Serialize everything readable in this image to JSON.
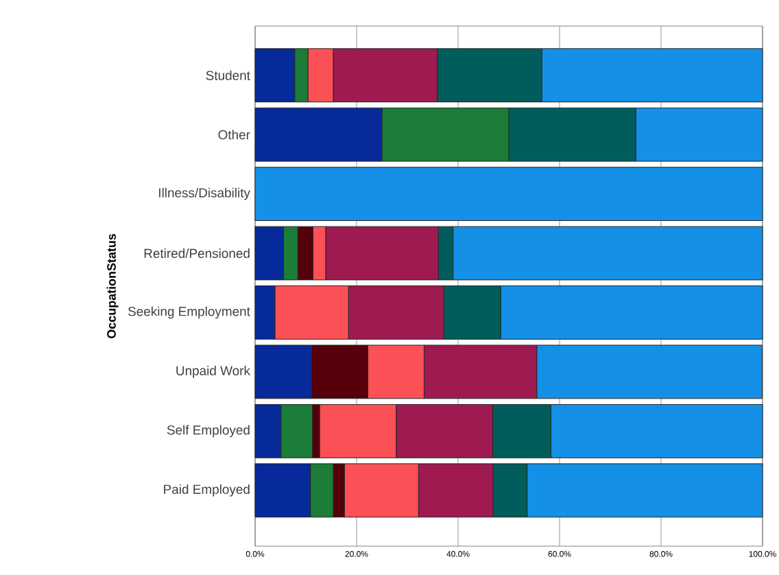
{
  "chart_data": {
    "type": "bar",
    "orientation": "horizontal",
    "stacked": true,
    "ylabel": "OccupationStatus",
    "categories": [
      "Student",
      "Other",
      "Illness/Disability",
      "Retired/Pensioned",
      "Seeking Employment",
      "Unpaid Work",
      "Self Employed",
      "Paid Employed"
    ],
    "series": [
      {
        "color": "#062a99",
        "values": [
          7.8,
          25.0,
          0,
          5.6,
          3.9,
          11.1,
          5.1,
          10.9
        ]
      },
      {
        "color": "#1c7d38",
        "values": [
          2.6,
          25.0,
          0,
          2.8,
          0,
          0,
          6.2,
          4.5
        ]
      },
      {
        "color": "#55000a",
        "values": [
          0,
          0,
          0,
          3.0,
          0,
          11.1,
          1.4,
          2.2
        ]
      },
      {
        "color": "#fb5055",
        "values": [
          5.0,
          0,
          0,
          2.5,
          14.5,
          11.1,
          15.1,
          14.6
        ]
      },
      {
        "color": "#9e1a50",
        "values": [
          20.5,
          0,
          0,
          22.2,
          18.8,
          22.2,
          19.0,
          14.7
        ]
      },
      {
        "color": "#005d5b",
        "values": [
          20.6,
          25.0,
          0,
          2.9,
          11.2,
          0,
          11.5,
          6.7
        ]
      },
      {
        "color": "#1490e6",
        "values": [
          43.5,
          25.0,
          100,
          61.0,
          51.6,
          44.4,
          41.7,
          46.4
        ]
      }
    ],
    "xlim": [
      0,
      100
    ],
    "xticks": [
      {
        "value": 0,
        "label": "0.0%"
      },
      {
        "value": 20,
        "label": "20.0%"
      },
      {
        "value": 40,
        "label": "40.0%"
      },
      {
        "value": 60,
        "label": "60.0%"
      },
      {
        "value": 80,
        "label": "80.0%"
      },
      {
        "value": 100,
        "label": "100.0%"
      }
    ],
    "grid": "x"
  }
}
